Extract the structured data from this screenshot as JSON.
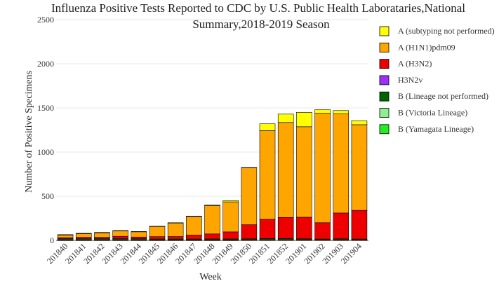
{
  "chart_data": {
    "type": "bar",
    "stacked": true,
    "title": "Influenza Positive Tests Reported to CDC by U.S. Public Health Laborataries,National Summary,2018-2019 Season",
    "title_lines": [
      "Influenza Positive Tests Reported to CDC by U.S. Public Health Laborataries,National",
      "Summary,2018-2019 Season"
    ],
    "xlabel": "Week",
    "ylabel": "Number of Positive Specimens",
    "ylim": [
      0,
      2500
    ],
    "yticks": [
      0,
      500,
      1000,
      1500,
      2000,
      2500
    ],
    "grid": true,
    "legend_position": "top-right",
    "categories": [
      "201840",
      "201841",
      "201842",
      "201843",
      "201844",
      "201845",
      "201846",
      "201847",
      "201848",
      "201849",
      "201850",
      "201851",
      "201852",
      "201901",
      "201902",
      "201903",
      "201904"
    ],
    "series": [
      {
        "name": "B (Yamagata Lineage)",
        "color": "#22ee22",
        "values": [
          1,
          1,
          1,
          1,
          1,
          1,
          1,
          1,
          1,
          1,
          2,
          2,
          2,
          2,
          2,
          2,
          2
        ]
      },
      {
        "name": "B (Victoria Lineage)",
        "color": "#90ee90",
        "values": [
          2,
          2,
          2,
          2,
          2,
          2,
          2,
          2,
          3,
          3,
          3,
          3,
          3,
          3,
          3,
          3,
          3
        ]
      },
      {
        "name": "B (Lineage not performed)",
        "color": "#006400",
        "values": [
          15,
          15,
          15,
          15,
          15,
          12,
          12,
          12,
          12,
          12,
          12,
          15,
          15,
          12,
          10,
          12,
          10
        ]
      },
      {
        "name": "H3N2v",
        "color": "#9b30ff",
        "values": [
          0,
          0,
          0,
          0,
          0,
          0,
          0,
          0,
          0,
          0,
          0,
          0,
          0,
          0,
          0,
          0,
          0
        ]
      },
      {
        "name": "A (H3N2)",
        "color": "#ee0000",
        "values": [
          12,
          17,
          17,
          28,
          20,
          27,
          28,
          45,
          57,
          80,
          160,
          218,
          240,
          245,
          185,
          293,
          325
        ]
      },
      {
        "name": "A (H1N1)pdm09",
        "color": "#ffa500",
        "values": [
          30,
          40,
          50,
          60,
          60,
          115,
          150,
          210,
          320,
          340,
          645,
          1005,
          1075,
          1025,
          1240,
          1125,
          970
        ]
      },
      {
        "name": "A (subtyping not performed)",
        "color": "#ffff00",
        "values": [
          5,
          5,
          5,
          5,
          2,
          3,
          7,
          5,
          7,
          14,
          3,
          77,
          95,
          163,
          40,
          35,
          45
        ]
      }
    ],
    "legend_order": [
      "A (subtyping not performed)",
      "A (H1N1)pdm09",
      "A (H3N2)",
      "H3N2v",
      "B (Lineage not performed)",
      "B (Victoria Lineage)",
      "B (Yamagata Lineage)"
    ]
  }
}
